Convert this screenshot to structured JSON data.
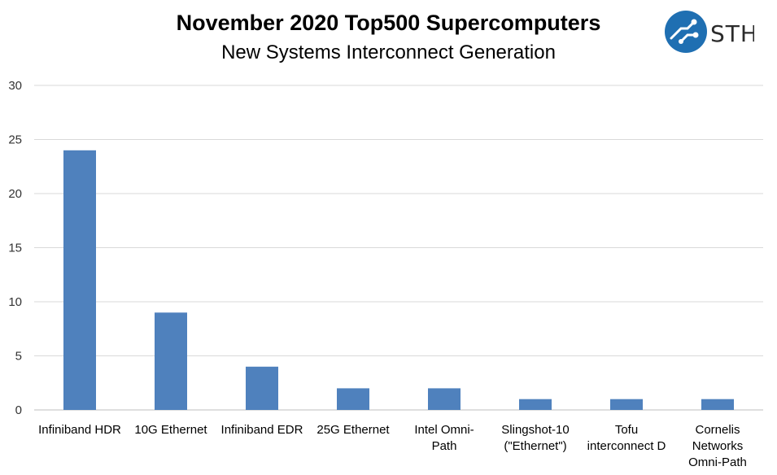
{
  "chart_data": {
    "type": "bar",
    "title": "November 2020 Top500 Supercomputers",
    "subtitle": "New Systems Interconnect Generation",
    "categories": [
      [
        "Infiniband HDR"
      ],
      [
        "10G Ethernet"
      ],
      [
        "Infiniband EDR"
      ],
      [
        "25G Ethernet"
      ],
      [
        "Intel Omni-",
        "Path"
      ],
      [
        "Slingshot-10",
        "(\"Ethernet\")"
      ],
      [
        "Tofu",
        "interconnect D"
      ],
      [
        "Cornelis",
        "Networks",
        "Omni-Path"
      ]
    ],
    "values": [
      24,
      9,
      4,
      2,
      2,
      1,
      1,
      1
    ],
    "ylim": [
      0,
      30
    ],
    "yticks": [
      0,
      5,
      10,
      15,
      20,
      25,
      30
    ],
    "grid": true,
    "bar_color": "#4f81bd",
    "grid_color": "#d9d9d9",
    "legend": "none"
  },
  "logo": {
    "text": "STH",
    "icon": "circuit-icon",
    "color": "#1f6fb2"
  }
}
